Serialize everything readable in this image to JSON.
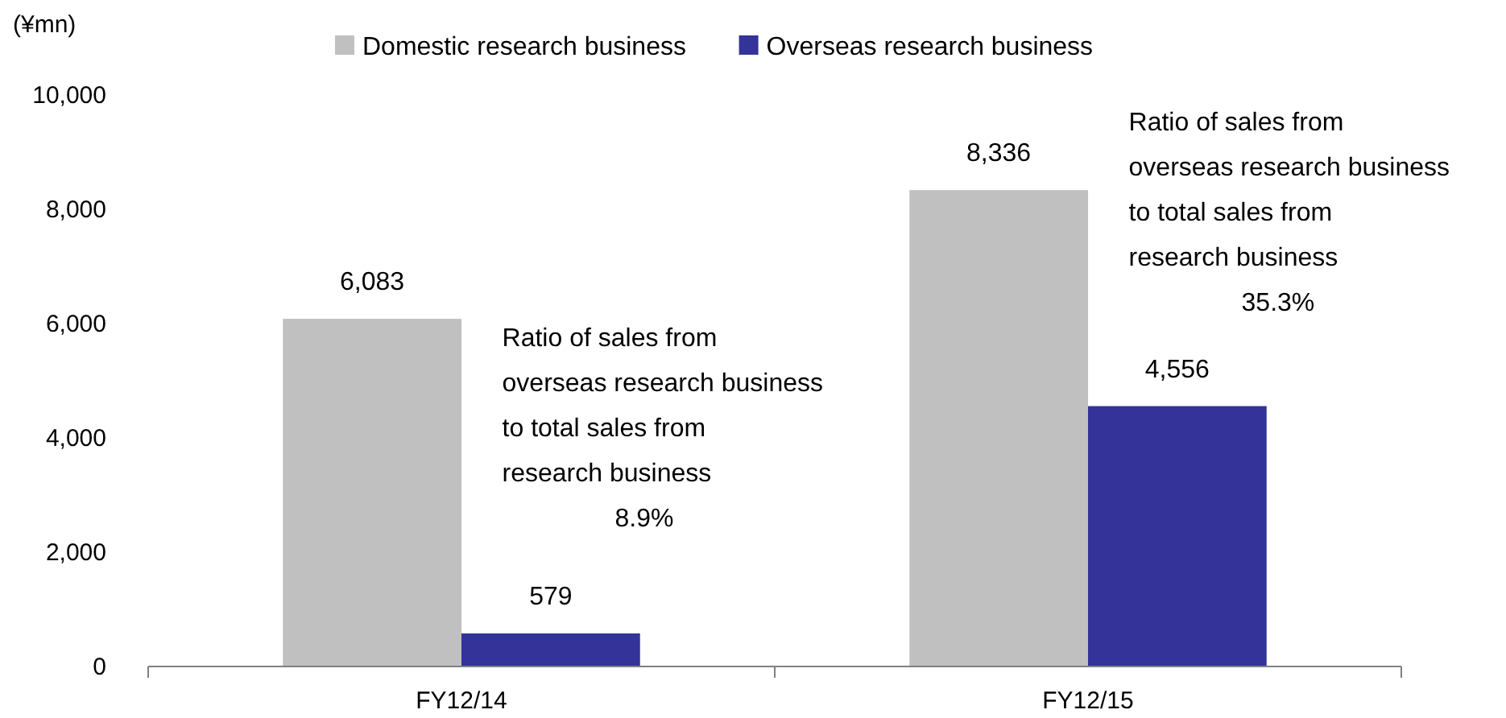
{
  "chart_data": {
    "type": "bar",
    "ylabel": "(¥mn)",
    "categories": [
      "FY12/14",
      "FY12/15"
    ],
    "series": [
      {
        "name": "Domestic research business",
        "color": "#c0c0c0",
        "values": [
          6083,
          8336
        ],
        "value_labels": [
          "6,083",
          "8,336"
        ]
      },
      {
        "name": "Overseas research business",
        "color": "#333399",
        "values": [
          579,
          4556
        ],
        "value_labels": [
          "579",
          "4,556"
        ]
      }
    ],
    "ylim": [
      0,
      10000
    ],
    "yticks": [
      {
        "value": 0,
        "label": "0"
      },
      {
        "value": 2000,
        "label": "2,000"
      },
      {
        "value": 4000,
        "label": "4,000"
      },
      {
        "value": 6000,
        "label": "6,000"
      },
      {
        "value": 8000,
        "label": "8,000"
      },
      {
        "value": 10000,
        "label": "10,000"
      }
    ],
    "legend": "top",
    "grid": false,
    "annotations": [
      "Ratio of sales from\noverseas research business\nto total sales from\nresearch business\n8.9%",
      "Ratio of sales from\noverseas research business\nto total sales from\nresearch business\n35.3%"
    ]
  }
}
